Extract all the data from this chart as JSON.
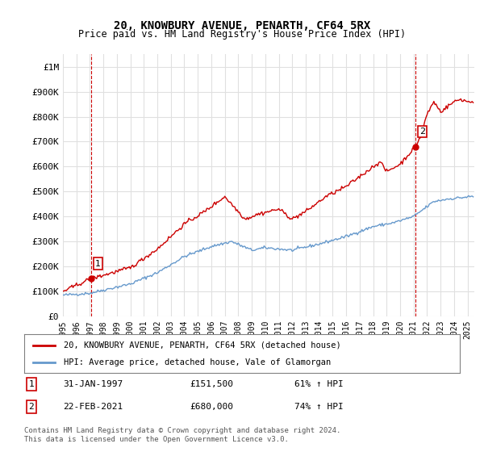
{
  "title": "20, KNOWBURY AVENUE, PENARTH, CF64 5RX",
  "subtitle": "Price paid vs. HM Land Registry's House Price Index (HPI)",
  "ylabel_ticks": [
    "£0",
    "£100K",
    "£200K",
    "£300K",
    "£400K",
    "£500K",
    "£600K",
    "£700K",
    "£800K",
    "£900K",
    "£1M"
  ],
  "ytick_values": [
    0,
    100000,
    200000,
    300000,
    400000,
    500000,
    600000,
    700000,
    800000,
    900000,
    1000000
  ],
  "ylim": [
    0,
    1050000
  ],
  "xlim_start": 1995.0,
  "xlim_end": 2025.5,
  "background_color": "#ffffff",
  "grid_color": "#e0e0e0",
  "red_color": "#cc0000",
  "blue_color": "#6699cc",
  "sale1_year": 1997.08,
  "sale1_price": 151500,
  "sale1_label": "1",
  "sale1_date": "31-JAN-1997",
  "sale1_pct": "61% ↑ HPI",
  "sale2_year": 2021.13,
  "sale2_price": 680000,
  "sale2_label": "2",
  "sale2_date": "22-FEB-2021",
  "sale2_pct": "74% ↑ HPI",
  "legend_line1": "20, KNOWBURY AVENUE, PENARTH, CF64 5RX (detached house)",
  "legend_line2": "HPI: Average price, detached house, Vale of Glamorgan",
  "footer1": "Contains HM Land Registry data © Crown copyright and database right 2024.",
  "footer2": "This data is licensed under the Open Government Licence v3.0.",
  "xtick_years": [
    1995,
    1996,
    1997,
    1998,
    1999,
    2000,
    2001,
    2002,
    2003,
    2004,
    2005,
    2006,
    2007,
    2008,
    2009,
    2010,
    2011,
    2012,
    2013,
    2014,
    2015,
    2016,
    2017,
    2018,
    2019,
    2020,
    2021,
    2022,
    2023,
    2024,
    2025
  ]
}
